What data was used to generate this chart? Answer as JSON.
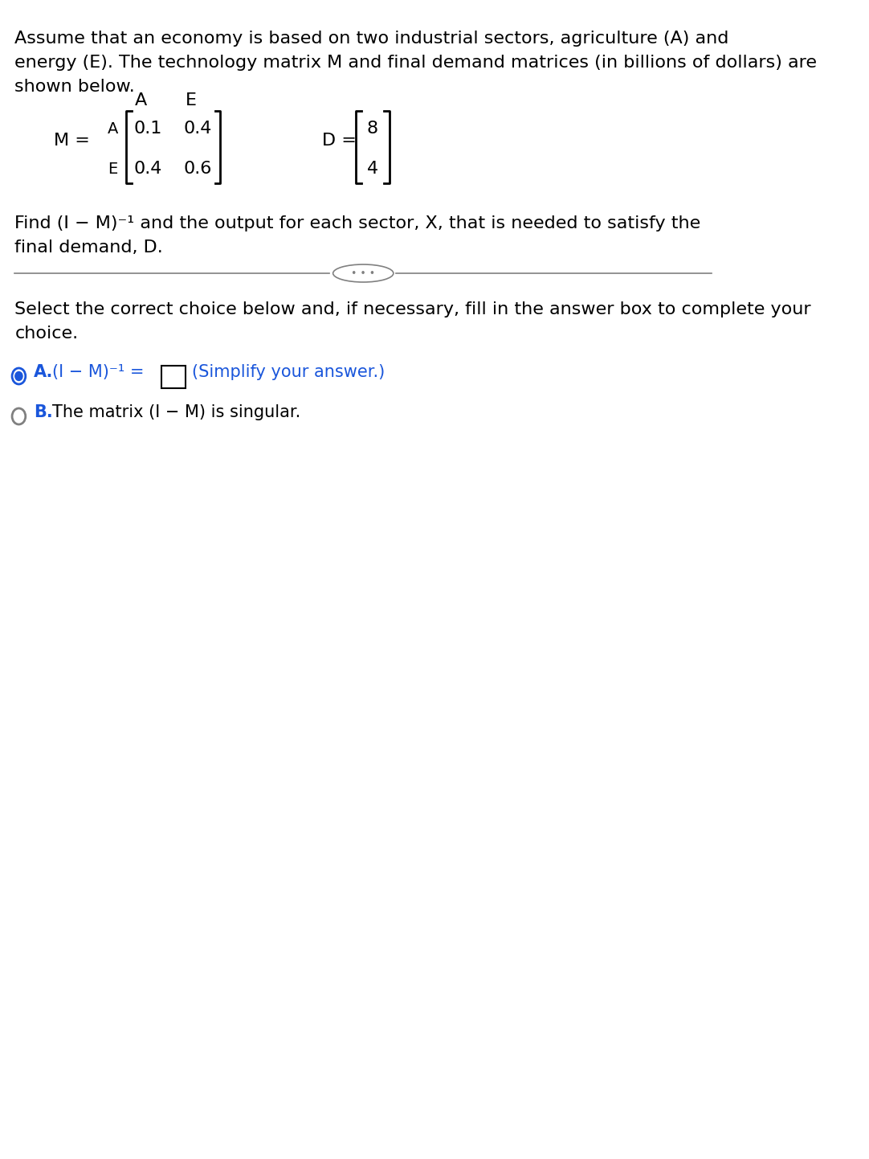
{
  "bg_color": "#ffffff",
  "text_color": "#000000",
  "blue_color": "#1a56db",
  "gray_color": "#808080",
  "para1": "Assume that an economy is based on two industrial sectors, agriculture (A) and\nenergy (E). The technology matrix M and final demand matrices (in billions of dollars) are\nshown below.",
  "find_text": "Find (I − M)⁻¹ and the output for each sector, X, that is needed to satisfy the\nfinal demand, D.",
  "select_text": "Select the correct choice below and, if necessary, fill in the answer box to complete your\nchoice.",
  "choice_a_label": "A.",
  "choice_a_text1": "(I − M)⁻¹ =",
  "choice_a_text2": "(Simplify your answer.)",
  "choice_b_label": "B.",
  "choice_b_text": "The matrix (I − M) is singular.",
  "M_label": "M =",
  "D_label": "D =",
  "col_labels": [
    "A",
    "E"
  ],
  "row_labels": [
    "A",
    "E"
  ],
  "M_values": [
    [
      "0.1",
      "0.4"
    ],
    [
      "0.4",
      "0.6"
    ]
  ],
  "D_values": [
    "8",
    "4"
  ],
  "dots_text": "• • •",
  "font_size_main": 16,
  "font_size_matrix": 16,
  "font_size_label": 14,
  "font_size_choice": 15
}
